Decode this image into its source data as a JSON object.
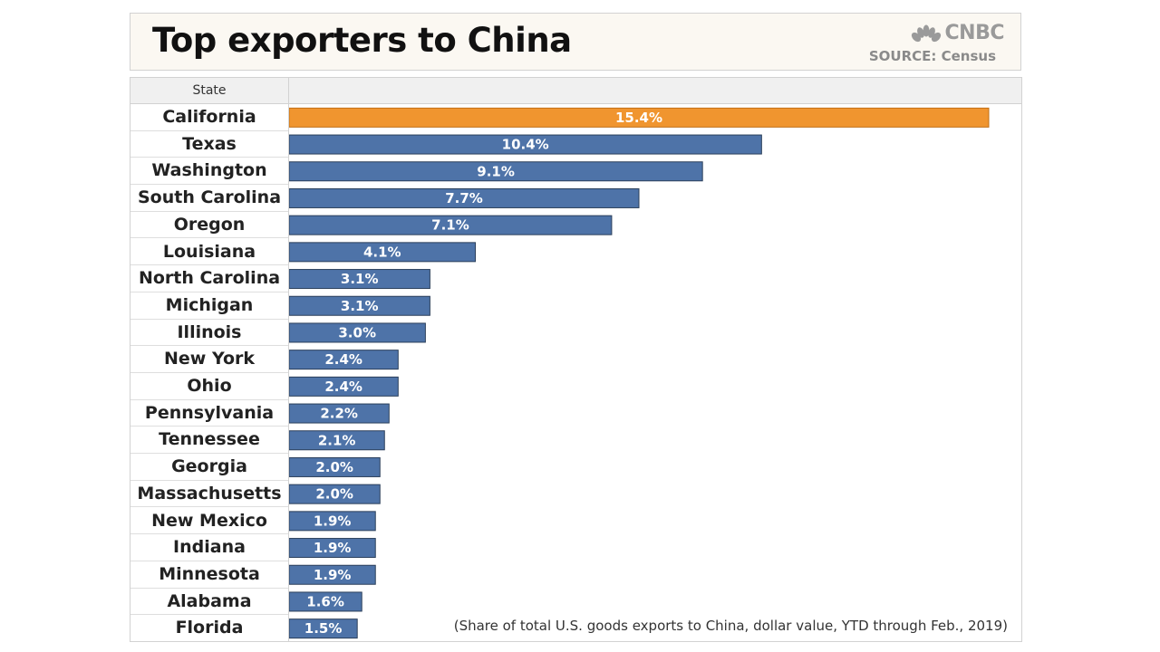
{
  "header": {
    "title": "Top exporters to China",
    "brand": "CNBC",
    "source": "SOURCE: Census"
  },
  "table": {
    "column_header": "State",
    "footnote": "(Share of total U.S. goods exports to China, dollar value, YTD through Feb., 2019)"
  },
  "colors": {
    "highlight": "#f0952f",
    "bar": "#4e73a8",
    "bar_stroke": "#2b3f5a"
  },
  "chart_data": {
    "type": "bar",
    "orientation": "horizontal",
    "categories": [
      "California",
      "Texas",
      "Washington",
      "South Carolina",
      "Oregon",
      "Louisiana",
      "North Carolina",
      "Michigan",
      "Illinois",
      "New York",
      "Ohio",
      "Pennsylvania",
      "Tennessee",
      "Georgia",
      "Massachusetts",
      "New Mexico",
      "Indiana",
      "Minnesota",
      "Alabama",
      "Florida"
    ],
    "values": [
      15.4,
      10.4,
      9.1,
      7.7,
      7.1,
      4.1,
      3.1,
      3.1,
      3.0,
      2.4,
      2.4,
      2.2,
      2.1,
      2.0,
      2.0,
      1.9,
      1.9,
      1.9,
      1.6,
      1.5
    ],
    "data_labels": [
      "15.4%",
      "10.4%",
      "9.1%",
      "7.7%",
      "7.1%",
      "4.1%",
      "3.1%",
      "3.1%",
      "3.0%",
      "2.4%",
      "2.4%",
      "2.2%",
      "2.1%",
      "2.0%",
      "2.0%",
      "1.9%",
      "1.9%",
      "1.9%",
      "1.6%",
      "1.5%"
    ],
    "highlight_index": 0,
    "xlim": [
      0,
      16
    ],
    "grid": false,
    "legend": "none"
  }
}
